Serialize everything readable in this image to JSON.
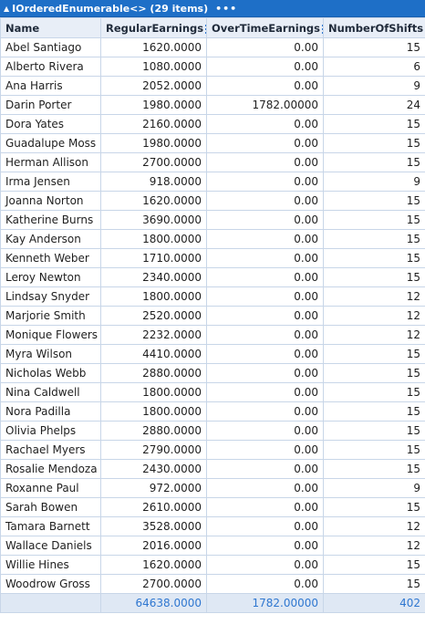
{
  "title": {
    "label": "IOrderedEnumerable<> (29 items)",
    "menu": "•••"
  },
  "columns": [
    {
      "label": "Name"
    },
    {
      "label": "RegularEarnings"
    },
    {
      "label": "OverTimeEarnings"
    },
    {
      "label": "NumberOfShifts"
    }
  ],
  "rows": [
    [
      "Abel Santiago",
      "1620.0000",
      "0.00",
      "15"
    ],
    [
      "Alberto Rivera",
      "1080.0000",
      "0.00",
      "6"
    ],
    [
      "Ana Harris",
      "2052.0000",
      "0.00",
      "9"
    ],
    [
      "Darin Porter",
      "1980.0000",
      "1782.00000",
      "24"
    ],
    [
      "Dora Yates",
      "2160.0000",
      "0.00",
      "15"
    ],
    [
      "Guadalupe Moss",
      "1980.0000",
      "0.00",
      "15"
    ],
    [
      "Herman Allison",
      "2700.0000",
      "0.00",
      "15"
    ],
    [
      "Irma Jensen",
      "918.0000",
      "0.00",
      "9"
    ],
    [
      "Joanna Norton",
      "1620.0000",
      "0.00",
      "15"
    ],
    [
      "Katherine Burns",
      "3690.0000",
      "0.00",
      "15"
    ],
    [
      "Kay Anderson",
      "1800.0000",
      "0.00",
      "15"
    ],
    [
      "Kenneth Weber",
      "1710.0000",
      "0.00",
      "15"
    ],
    [
      "Leroy Newton",
      "2340.0000",
      "0.00",
      "15"
    ],
    [
      "Lindsay Snyder",
      "1800.0000",
      "0.00",
      "12"
    ],
    [
      "Marjorie Smith",
      "2520.0000",
      "0.00",
      "12"
    ],
    [
      "Monique Flowers",
      "2232.0000",
      "0.00",
      "12"
    ],
    [
      "Myra Wilson",
      "4410.0000",
      "0.00",
      "15"
    ],
    [
      "Nicholas Webb",
      "2880.0000",
      "0.00",
      "15"
    ],
    [
      "Nina Caldwell",
      "1800.0000",
      "0.00",
      "15"
    ],
    [
      "Nora Padilla",
      "1800.0000",
      "0.00",
      "15"
    ],
    [
      "Olivia Phelps",
      "2880.0000",
      "0.00",
      "15"
    ],
    [
      "Rachael Myers",
      "2790.0000",
      "0.00",
      "15"
    ],
    [
      "Rosalie Mendoza",
      "2430.0000",
      "0.00",
      "15"
    ],
    [
      "Roxanne Paul",
      "972.0000",
      "0.00",
      "9"
    ],
    [
      "Sarah Bowen",
      "2610.0000",
      "0.00",
      "15"
    ],
    [
      "Tamara Barnett",
      "3528.0000",
      "0.00",
      "12"
    ],
    [
      "Wallace Daniels",
      "2016.0000",
      "0.00",
      "12"
    ],
    [
      "Willie Hines",
      "1620.0000",
      "0.00",
      "15"
    ],
    [
      "Woodrow Gross",
      "2700.0000",
      "0.00",
      "15"
    ]
  ],
  "totals": [
    "",
    "64638.0000",
    "1782.00000",
    "402"
  ],
  "colors": {
    "title_bg": "#1e6fc7",
    "header_bg": "#e8eef7",
    "total_text": "#2f77d0",
    "grid": "#c8d6e8",
    "menu_icon": "#2f77d0"
  },
  "icons": {
    "collapse": "triangle-up-icon",
    "column_menu": "hamburger-menu-icon"
  }
}
